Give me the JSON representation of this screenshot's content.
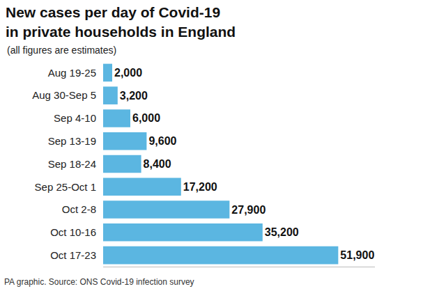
{
  "chart_data": {
    "type": "bar",
    "orientation": "horizontal",
    "title": "New cases per day of Covid-19\nin private households in England",
    "subtitle": "(all figures are estimates)",
    "source": "PA graphic. Source: ONS Covid-19 infection survey",
    "categories": [
      "Aug 19-25",
      "Aug 30-Sep 5",
      "Sep 4-10",
      "Sep 13-19",
      "Sep 18-24",
      "Sep 25-Oct 1",
      "Oct 2-8",
      "Oct 10-16",
      "Oct 17-23"
    ],
    "values": [
      2000,
      3200,
      6000,
      9600,
      8400,
      17200,
      27900,
      35200,
      51900
    ],
    "value_labels": [
      "2,000",
      "3,200",
      "6,000",
      "9,600",
      "8,400",
      "17,200",
      "27,900",
      "35,200",
      "51,900"
    ],
    "color": "#5bb6e1",
    "xlim": [
      0,
      60000
    ],
    "xticks": [],
    "grid": false,
    "data_labels": true,
    "tick_labels": "y"
  }
}
